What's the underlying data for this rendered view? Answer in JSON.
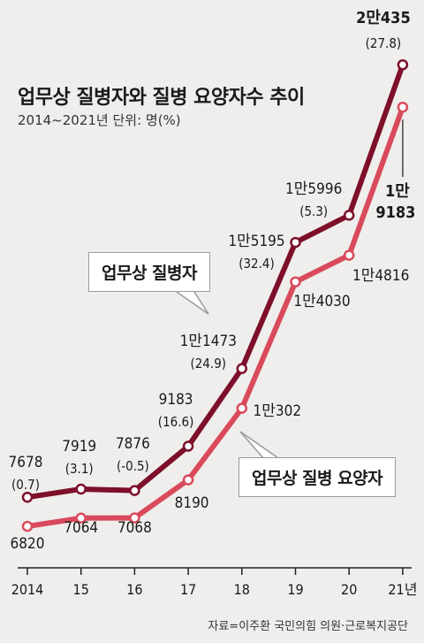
{
  "title": "업무상 질병자와 질병 요양자수 추이",
  "subtitle": "2014~2021년   단위: 명(%)",
  "source": "자료=이주환 국민의힘 의원·근로복지공단",
  "colors": {
    "dark": "#7d0f2a",
    "light": "#d94a5c",
    "axis": "#222222"
  },
  "chart_data": {
    "type": "line",
    "categories": [
      "2014",
      "15",
      "16",
      "17",
      "18",
      "19",
      "20",
      "21년"
    ],
    "series": [
      {
        "name": "업무상 질병자",
        "values": [
          7678,
          7919,
          7876,
          9183,
          11473,
          15195,
          15996,
          20435
        ],
        "value_labels": [
          "7678",
          "7919",
          "7876",
          "9183",
          "1만1473",
          "1만5195",
          "1만5996",
          "2만435"
        ],
        "change_labels": [
          "(0.7)",
          "(3.1)",
          "(-0.5)",
          "(16.6)",
          "(24.9)",
          "(32.4)",
          "(5.3)",
          "(27.8)"
        ]
      },
      {
        "name": "업무상 질병 요양자",
        "values": [
          6820,
          7064,
          7068,
          8190,
          10302,
          14030,
          14816,
          19183
        ],
        "value_labels": [
          "6820",
          "7064",
          "7068",
          "8190",
          "1만302",
          "1만4030",
          "1만4816",
          "1만\n9183"
        ]
      }
    ]
  }
}
